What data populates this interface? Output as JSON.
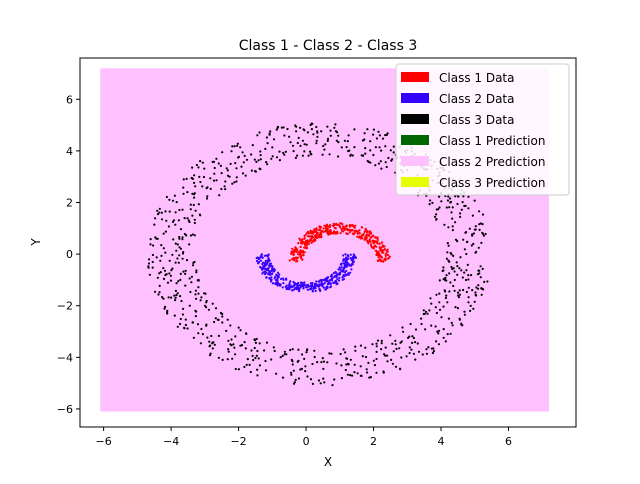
{
  "chart_data": {
    "type": "scatter",
    "title": "Class 1 - Class 2 - Class 3",
    "xlabel": "X",
    "ylabel": "Y",
    "xlim": [
      -6.7,
      8.0
    ],
    "ylim": [
      -6.7,
      7.6
    ],
    "xticks": [
      -6,
      -4,
      -2,
      0,
      2,
      4,
      6
    ],
    "yticks": [
      -6,
      -4,
      -2,
      0,
      2,
      4,
      6
    ],
    "xtick_labels": [
      "−6",
      "−4",
      "−2",
      "0",
      "2",
      "4",
      "6"
    ],
    "ytick_labels": [
      "−6",
      "−4",
      "−2",
      "0",
      "2",
      "4",
      "6"
    ],
    "grid": false,
    "legend_position": "top-right",
    "background_prediction": {
      "class": "Class 2 Prediction",
      "x_range": [
        -6.1,
        7.2
      ],
      "y_range": [
        -6.1,
        7.2
      ],
      "color": "#ffc0ff"
    },
    "series": [
      {
        "name": "Class 1 Data",
        "color": "#ff0000",
        "shape": "upper crescent",
        "center": [
          1.0,
          -0.3
        ],
        "radius": [
          1.1,
          1.5
        ],
        "angle_deg": [
          0,
          180
        ],
        "count": 400
      },
      {
        "name": "Class 2 Data",
        "color": "#3300ff",
        "shape": "lower crescent",
        "center": [
          0.0,
          0.0
        ],
        "radius": [
          1.1,
          1.5
        ],
        "angle_deg": [
          180,
          360
        ],
        "count": 400
      },
      {
        "name": "Class 3 Data",
        "color": "#000000",
        "shape": "ring",
        "center": [
          0.4,
          0.0
        ],
        "radius": [
          3.7,
          5.1
        ],
        "angle_deg": [
          0,
          360
        ],
        "count": 900
      }
    ],
    "legend": [
      {
        "label": "Class 1 Data",
        "color": "#ff0000"
      },
      {
        "label": "Class 2 Data",
        "color": "#3300ff"
      },
      {
        "label": "Class 3 Data",
        "color": "#000000"
      },
      {
        "label": "Class 1 Prediction",
        "color": "#006600"
      },
      {
        "label": "Class 2 Prediction",
        "color": "#ffc0ff"
      },
      {
        "label": "Class 3 Prediction",
        "color": "#e6ff00"
      }
    ]
  }
}
